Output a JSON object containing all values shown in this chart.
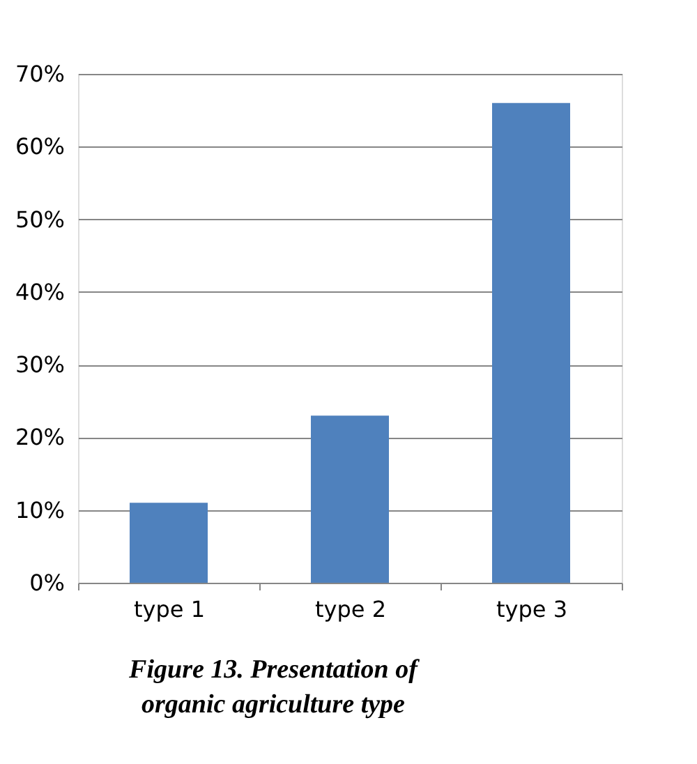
{
  "chart_data": {
    "type": "bar",
    "categories": [
      "type 1",
      "type 2",
      "type 3"
    ],
    "values": [
      11,
      23,
      66
    ],
    "color": "#4f81bd",
    "ylim": [
      0,
      70
    ],
    "yticks": [
      {
        "value": 0,
        "label": "0%"
      },
      {
        "value": 10,
        "label": "10%"
      },
      {
        "value": 20,
        "label": "20%"
      },
      {
        "value": 30,
        "label": "30%"
      },
      {
        "value": 40,
        "label": "40%"
      },
      {
        "value": 50,
        "label": "50%"
      },
      {
        "value": 60,
        "label": "60%"
      },
      {
        "value": 70,
        "label": "70%"
      }
    ],
    "grid": "y",
    "annotations": [
      "Figure 13. Presentation of",
      "organic agriculture type"
    ]
  }
}
